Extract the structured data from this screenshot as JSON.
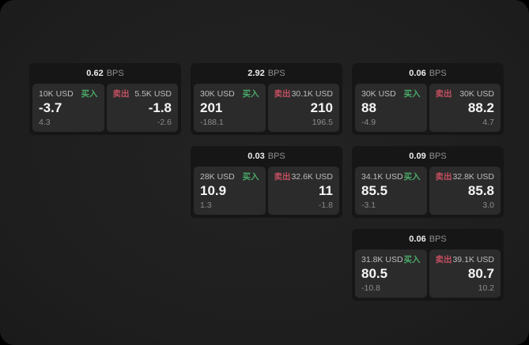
{
  "labels": {
    "buy": "买入",
    "sell": "卖出",
    "bps": "BPS"
  },
  "colors": {
    "page_bg": "#000000",
    "panel_bg": "#1e1e1e",
    "card_bg": "#161616",
    "tile_bg": "#2b2b2b",
    "buy_green": "#4aa968",
    "sell_red": "#c24f60",
    "text_primary": "#f5f5f5",
    "text_secondary": "#bdbdbd",
    "text_dim": "#8c8c8c"
  },
  "cards": [
    {
      "grid": {
        "col": 1,
        "row": 1
      },
      "bps": "0.62",
      "buy": {
        "amount": "10K USD",
        "main": "-3.7",
        "sub": "4.3"
      },
      "sell": {
        "amount": "5.5K USD",
        "main": "-1.8",
        "sub": "-2.6"
      }
    },
    {
      "grid": {
        "col": 2,
        "row": 1
      },
      "bps": "2.92",
      "buy": {
        "amount": "30K USD",
        "main": "201",
        "sub": "-188.1"
      },
      "sell": {
        "amount": "30.1K USD",
        "main": "210",
        "sub": "196.5"
      }
    },
    {
      "grid": {
        "col": 3,
        "row": 1
      },
      "bps": "0.06",
      "buy": {
        "amount": "30K USD",
        "main": "88",
        "sub": "-4.9"
      },
      "sell": {
        "amount": "30K USD",
        "main": "88.2",
        "sub": "4.7"
      }
    },
    {
      "grid": {
        "col": 2,
        "row": 2
      },
      "bps": "0.03",
      "buy": {
        "amount": "28K USD",
        "main": "10.9",
        "sub": "1.3"
      },
      "sell": {
        "amount": "32.6K USD",
        "main": "11",
        "sub": "-1.8"
      }
    },
    {
      "grid": {
        "col": 3,
        "row": 2
      },
      "bps": "0.09",
      "buy": {
        "amount": "34.1K USD",
        "main": "85.5",
        "sub": "-3.1"
      },
      "sell": {
        "amount": "32.8K USD",
        "main": "85.8",
        "sub": "3.0"
      }
    },
    {
      "grid": {
        "col": 3,
        "row": 3
      },
      "bps": "0.06",
      "buy": {
        "amount": "31.8K USD",
        "main": "80.5",
        "sub": "-10.8"
      },
      "sell": {
        "amount": "39.1K USD",
        "main": "80.7",
        "sub": "10.2"
      }
    }
  ]
}
